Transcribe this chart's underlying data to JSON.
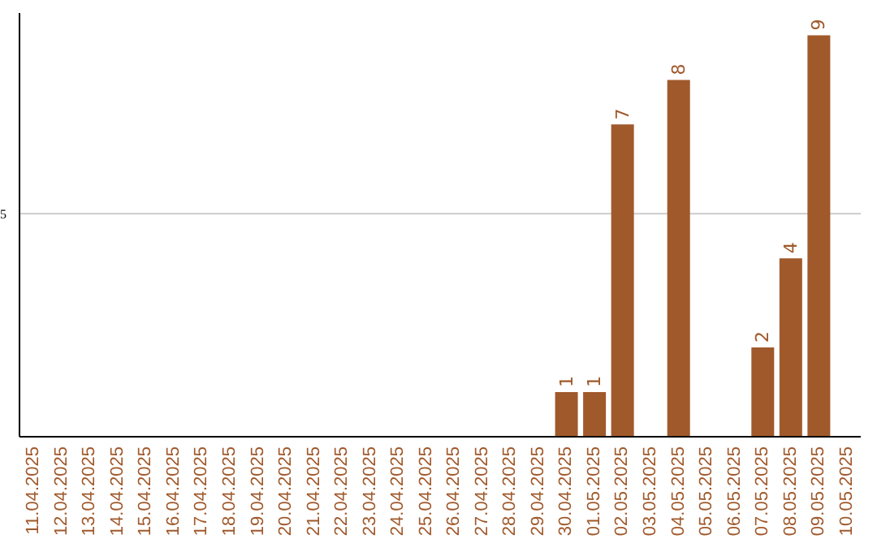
{
  "chart_data": {
    "type": "bar",
    "categories": [
      "11.04.2025",
      "12.04.2025",
      "13.04.2025",
      "14.04.2025",
      "15.04.2025",
      "16.04.2025",
      "17.04.2025",
      "18.04.2025",
      "19.04.2025",
      "20.04.2025",
      "21.04.2025",
      "22.04.2025",
      "23.04.2025",
      "24.04.2025",
      "25.04.2025",
      "26.04.2025",
      "27.04.2025",
      "28.04.2025",
      "29.04.2025",
      "30.04.2025",
      "01.05.2025",
      "02.05.2025",
      "03.05.2025",
      "04.05.2025",
      "05.05.2025",
      "06.05.2025",
      "07.05.2025",
      "08.05.2025",
      "09.05.2025",
      "10.05.2025"
    ],
    "values": [
      null,
      null,
      null,
      null,
      null,
      null,
      null,
      null,
      null,
      null,
      null,
      null,
      null,
      null,
      null,
      null,
      null,
      null,
      null,
      1,
      1,
      7,
      null,
      8,
      null,
      null,
      2,
      4,
      9,
      null
    ],
    "color": "#a0592b",
    "ylim": [
      0,
      9.5
    ],
    "yticks": [
      5
    ],
    "grid": "y",
    "data_labels": true
  }
}
